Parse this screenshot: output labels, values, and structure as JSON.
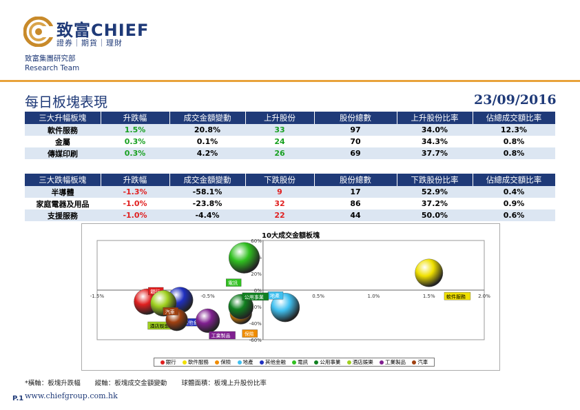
{
  "brand": {
    "name": "致富CHIEF",
    "sub": "證券｜期貨｜理財"
  },
  "dept": {
    "line1": "致富集團研究部",
    "line2": "Research Team"
  },
  "title": "每日板塊表現",
  "date": "23/09/2016",
  "gainers": {
    "headers": [
      "三大升幅板塊",
      "升跌幅",
      "成交金額變動",
      "上升股份",
      "股份總數",
      "上升股份比率",
      "佔總成交額比率"
    ],
    "rows": [
      [
        "軟件服務",
        "1.5%",
        "20.8%",
        "33",
        "97",
        "34.0%",
        "12.3%"
      ],
      [
        "金屬",
        "0.3%",
        "0.1%",
        "24",
        "70",
        "34.3%",
        "0.8%"
      ],
      [
        "傳媒印刷",
        "0.3%",
        "4.2%",
        "26",
        "69",
        "37.7%",
        "0.8%"
      ]
    ]
  },
  "losers": {
    "headers": [
      "三大跌幅板塊",
      "升跌幅",
      "成交金額變動",
      "下跌股份",
      "股份總數",
      "下跌股份比率",
      "佔總成交額比率"
    ],
    "rows": [
      [
        "半導體",
        "-1.3%",
        "-58.1%",
        "9",
        "17",
        "52.9%",
        "0.4%"
      ],
      [
        "家庭電器及用品",
        "-1.0%",
        "-23.8%",
        "32",
        "86",
        "37.2%",
        "0.9%"
      ],
      [
        "支援服務",
        "-1.0%",
        "-4.4%",
        "22",
        "44",
        "50.0%",
        "0.6%"
      ]
    ]
  },
  "chart_data": {
    "type": "scatter",
    "title": "10大成交金額板塊",
    "xlim": [
      -1.5,
      2.0
    ],
    "ylim": [
      -60,
      60
    ],
    "x_ticks": [
      "-1.5%",
      "-1.0%",
      "-0.5%",
      "0.0%",
      "0.5%",
      "1.0%",
      "1.5%",
      "2.0%"
    ],
    "y_ticks": [
      "60%",
      "40%",
      "20%",
      "0%",
      "-20%",
      "-40%",
      "-60%"
    ],
    "series": [
      {
        "name": "銀行",
        "x": -1.05,
        "y": -14,
        "size": 0.3,
        "color": "#e02020"
      },
      {
        "name": "軟件服務",
        "x": 1.5,
        "y": 20.8,
        "size": 0.34,
        "color": "#f0e000"
      },
      {
        "name": "保險",
        "x": -0.2,
        "y": -28,
        "size": 0.22,
        "color": "#f08c00"
      },
      {
        "name": "地產",
        "x": 0.2,
        "y": -21,
        "size": 0.36,
        "color": "#40c0f0"
      },
      {
        "name": "其他金融",
        "x": -0.75,
        "y": -12,
        "size": 0.3,
        "color": "#2030c0"
      },
      {
        "name": "電訊",
        "x": -0.17,
        "y": 39,
        "size": 0.4,
        "color": "#30c020"
      },
      {
        "name": "公用事業",
        "x": -0.2,
        "y": -20,
        "size": 0.28,
        "color": "#108020"
      },
      {
        "name": "酒店娛樂",
        "x": -0.9,
        "y": -16,
        "size": 0.3,
        "color": "#a0d020"
      },
      {
        "name": "工業製品",
        "x": -0.5,
        "y": -37,
        "size": 0.26,
        "color": "#802090"
      },
      {
        "name": "汽車",
        "x": -0.78,
        "y": -36,
        "size": 0.22,
        "color": "#a04010"
      }
    ],
    "legend": [
      "銀行",
      "軟件服務",
      "保險",
      "地產",
      "其他金融",
      "電訊",
      "公用事業",
      "酒店娛樂",
      "工業製品",
      "汽車"
    ]
  },
  "footnote": {
    "x": "*橫軸：板塊升跌幅",
    "y": "縱軸：板塊成交金額變動",
    "size": "球體面積：板塊上升股份比率"
  },
  "page": "P.1",
  "url": "www.chiefgroup.com.hk"
}
